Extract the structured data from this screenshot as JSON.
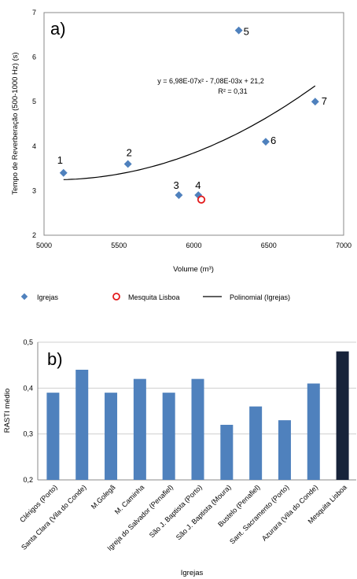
{
  "chart_data": [
    {
      "type": "scatter",
      "panel_label": "a)",
      "xlabel": "Volume (m³)",
      "ylabel": "Tempo de Reverberação  (500-1000  Hz) (s)",
      "xlim": [
        5000,
        7000
      ],
      "ylim": [
        2,
        7
      ],
      "xticks": [
        "5000",
        "5500",
        "6000",
        "6500",
        "7000"
      ],
      "yticks": [
        "2",
        "3",
        "4",
        "5",
        "6",
        "7"
      ],
      "grid": false,
      "legend_position": "bottom",
      "series": [
        {
          "name": "Igrejas",
          "color": "#4f81bd",
          "marker": "diamond",
          "points": [
            {
              "x": 5130,
              "y": 3.4,
              "label": "1"
            },
            {
              "x": 5560,
              "y": 3.6,
              "label": "2"
            },
            {
              "x": 5900,
              "y": 2.9,
              "label": "3"
            },
            {
              "x": 6030,
              "y": 2.9,
              "label": "4"
            },
            {
              "x": 6300,
              "y": 6.6,
              "label": "5"
            },
            {
              "x": 6480,
              "y": 4.1,
              "label": "6"
            },
            {
              "x": 6810,
              "y": 5.0,
              "label": "7"
            }
          ]
        },
        {
          "name": "Mesquita Lisboa",
          "color": "#e31a1c",
          "marker": "circle",
          "points": [
            {
              "x": 6050,
              "y": 2.8
            }
          ]
        },
        {
          "name": "Polinomial (Igrejas)",
          "color": "#000000",
          "marker": "line",
          "fit": {
            "x_range": [
              5130,
              6810
            ]
          }
        }
      ],
      "annotations": {
        "equation": "y = 6,98E-07x² - 7,08E-03x + 21,2",
        "r2": "R² = 0,31"
      }
    },
    {
      "type": "bar",
      "panel_label": "b)",
      "xlabel": "Igrejas",
      "ylabel": "RASTI médio",
      "ylim": [
        0.2,
        0.5
      ],
      "yticks": [
        "0,2",
        "0,3",
        "0,4",
        "0,5"
      ],
      "grid": true,
      "categories": [
        "Clérigos (Porto)",
        "Santa Clara (Vila do Conde)",
        "M.Golegã",
        "M. Caminha",
        "Igreja do Salvador (Penafiel)",
        "São J. Baptista (Porto)",
        "São J. Baptista (Moura)",
        "Bustelo (Penafiel)",
        "Sant. Sacramento (Porto)",
        "Azurara (Vila do Conde)",
        "Mesquita Lisboa"
      ],
      "values": [
        0.39,
        0.44,
        0.39,
        0.42,
        0.39,
        0.42,
        0.32,
        0.36,
        0.33,
        0.41,
        0.48
      ],
      "colors": [
        "#4f81bd",
        "#4f81bd",
        "#4f81bd",
        "#4f81bd",
        "#4f81bd",
        "#4f81bd",
        "#4f81bd",
        "#4f81bd",
        "#4f81bd",
        "#4f81bd",
        "#17233a"
      ]
    }
  ]
}
